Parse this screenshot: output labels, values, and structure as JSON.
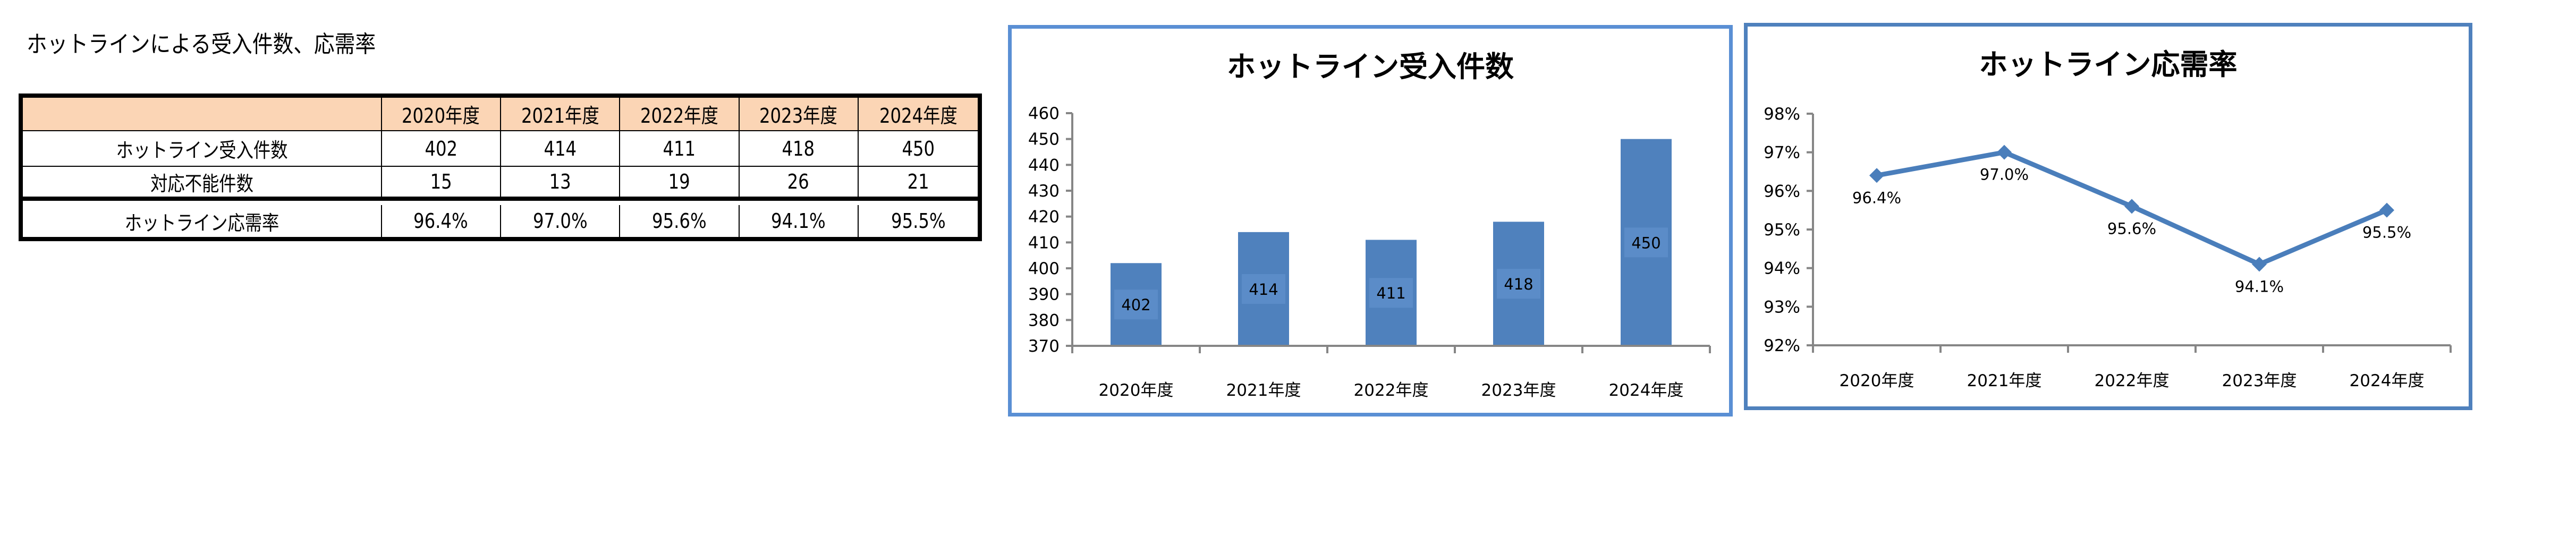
{
  "page": {
    "title": "ホットラインによる受入件数、応需率"
  },
  "table": {
    "header": [
      "",
      "2020年度",
      "2021年度",
      "2022年度",
      "2023年度",
      "2024年度"
    ],
    "rows": [
      {
        "label": "ホットライン受入件数",
        "values": [
          "402",
          "414",
          "411",
          "418",
          "450"
        ]
      },
      {
        "label": "対応不能件数",
        "values": [
          "15",
          "13",
          "19",
          "26",
          "21"
        ]
      },
      {
        "label": "ホットライン応需率",
        "values": [
          "96.4%",
          "97.0%",
          "95.6%",
          "94.1%",
          "95.5%"
        ]
      }
    ],
    "header_color": "#FBD5B5"
  },
  "colors": {
    "bar": "#4F81BD",
    "bar_label_bg": "#5B8CC8",
    "line": "#4A7EBB",
    "axis": "#868686",
    "frame_border": "#5A8FD4"
  },
  "chart_data": [
    {
      "type": "bar",
      "title": "ホットライン受入件数",
      "categories": [
        "2020年度",
        "2021年度",
        "2022年度",
        "2023年度",
        "2024年度"
      ],
      "values": [
        402,
        414,
        411,
        418,
        450
      ],
      "data_labels": [
        "402",
        "414",
        "411",
        "418",
        "450"
      ],
      "xlabel": "",
      "ylabel": "",
      "ylim": [
        370,
        460
      ],
      "yticks": [
        "460",
        "450",
        "440",
        "430",
        "420",
        "410",
        "400",
        "390",
        "380",
        "370"
      ],
      "grid": false,
      "legend": null
    },
    {
      "type": "line",
      "title": "ホットライン応需率",
      "categories": [
        "2020年度",
        "2021年度",
        "2022年度",
        "2023年度",
        "2024年度"
      ],
      "values": [
        96.4,
        97.0,
        95.6,
        94.1,
        95.5
      ],
      "data_labels": [
        "96.4%",
        "97.0%",
        "95.6%",
        "94.1%",
        "95.5%"
      ],
      "xlabel": "",
      "ylabel": "",
      "ylim": [
        92,
        98
      ],
      "yticks": [
        "98%",
        "97%",
        "96%",
        "95%",
        "94%",
        "93%",
        "92%"
      ],
      "marker": "diamond",
      "grid": false,
      "legend": null
    }
  ]
}
